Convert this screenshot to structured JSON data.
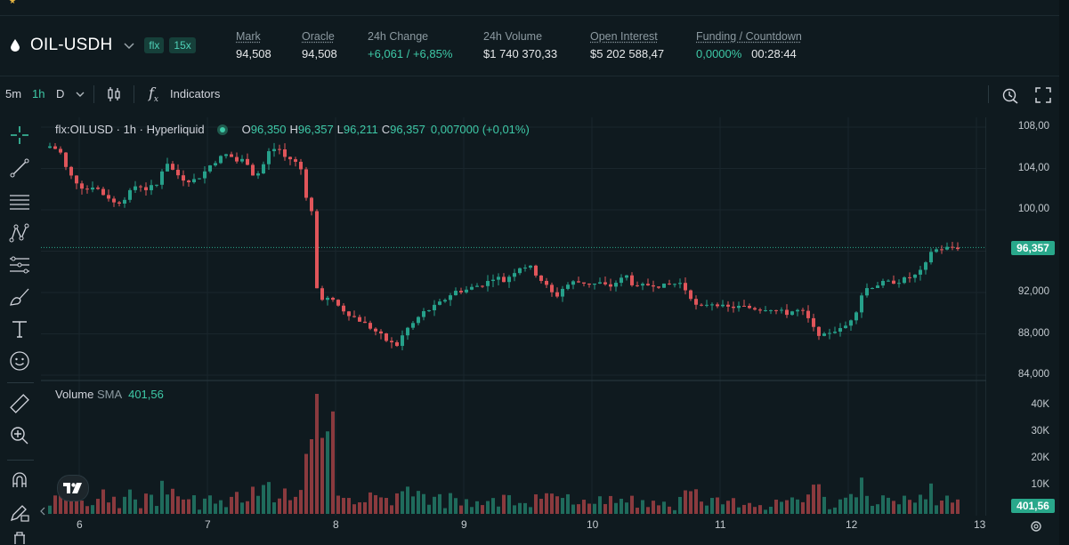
{
  "header": {
    "symbol": "OIL-USDH",
    "badges": [
      "flx",
      "15x"
    ],
    "stats": [
      {
        "label": "Mark",
        "value": "94,508",
        "underline": true
      },
      {
        "label": "Oracle",
        "value": "94,508",
        "underline": true
      },
      {
        "label": "24h Change",
        "value": "+6,061 / +6,85%",
        "underline": false,
        "positive": true
      },
      {
        "label": "24h Volume",
        "value": "$1 740 370,33",
        "underline": false
      },
      {
        "label": "Open Interest",
        "value": "$5 202 588,47",
        "underline": true
      },
      {
        "label": "Funding / Countdown",
        "value": "0,0000%",
        "value2": "00:28:44",
        "underline": true
      }
    ]
  },
  "toolbar": {
    "intervals": [
      "5m",
      "1h",
      "D"
    ],
    "active_interval": "1h",
    "indicators_label": "Indicators"
  },
  "left_tools": [
    "crosshair-icon",
    "trend-line-icon",
    "horizontal-lines-icon",
    "pattern-icon",
    "fib-icon",
    "brush-icon",
    "text-icon",
    "emoji-icon",
    "ruler-icon",
    "zoom-in-icon",
    "magnet-icon",
    "lock-draw-icon",
    "trash-icon"
  ],
  "legend": {
    "title": "flx:OILUSD · 1h · Hyperliquid",
    "o_label": "O",
    "o": "96,350",
    "h_label": "H",
    "h": "96,357",
    "l_label": "L",
    "l": "96,211",
    "c_label": "C",
    "c": "96,357",
    "change": "0,007000 (+0,01%)"
  },
  "volume_legend": {
    "label": "Volume",
    "sma_label": "SMA",
    "sma_value": "401,56"
  },
  "colors": {
    "up": "#26a08a",
    "down": "#e0555a",
    "bg": "#0f1a1f",
    "grid": "#1a262c",
    "tag": "#29a88b"
  },
  "chart_data": {
    "type": "candlestick",
    "price_axis": {
      "ticks": [
        "108,00",
        "104,00",
        "100,00",
        "92,000",
        "88,000",
        "84,000"
      ],
      "ylim": [
        84,
        108.3
      ]
    },
    "last_price": "96,357",
    "volume_axis": {
      "ticks": [
        "40K",
        "30K",
        "20K",
        "10K"
      ]
    },
    "volume_sma": "401,56",
    "x_ticks": [
      "6",
      "7",
      "8",
      "9",
      "10",
      "11",
      "12",
      "13"
    ],
    "price_path": [
      [
        0,
        106.0
      ],
      [
        8,
        106.2
      ],
      [
        18,
        105.5
      ],
      [
        26,
        103.6
      ],
      [
        36,
        102.7
      ],
      [
        46,
        101.9
      ],
      [
        56,
        102.4
      ],
      [
        64,
        101.6
      ],
      [
        72,
        101.2
      ],
      [
        80,
        100.5
      ],
      [
        92,
        101.3
      ],
      [
        104,
        102.5
      ],
      [
        114,
        102.0
      ],
      [
        126,
        102.4
      ],
      [
        136,
        104.8
      ],
      [
        146,
        103.6
      ],
      [
        156,
        103.0
      ],
      [
        166,
        102.8
      ],
      [
        176,
        103.3
      ],
      [
        186,
        104.3
      ],
      [
        196,
        105.0
      ],
      [
        206,
        105.4
      ],
      [
        216,
        104.7
      ],
      [
        226,
        104.9
      ],
      [
        236,
        103.1
      ],
      [
        244,
        104.0
      ],
      [
        252,
        105.6
      ],
      [
        262,
        106.1
      ],
      [
        270,
        105.1
      ],
      [
        280,
        104.8
      ],
      [
        290,
        103.7
      ],
      [
        296,
        100.2
      ],
      [
        302,
        99.6
      ],
      [
        306,
        92.4
      ],
      [
        312,
        91.5
      ],
      [
        322,
        91.3
      ],
      [
        334,
        90.4
      ],
      [
        346,
        89.7
      ],
      [
        356,
        89.2
      ],
      [
        366,
        88.6
      ],
      [
        376,
        88.0
      ],
      [
        386,
        87.2
      ],
      [
        396,
        86.9
      ],
      [
        406,
        88.4
      ],
      [
        414,
        89.0
      ],
      [
        424,
        90.0
      ],
      [
        436,
        90.5
      ],
      [
        448,
        91.2
      ],
      [
        460,
        92.1
      ],
      [
        472,
        92.2
      ],
      [
        484,
        92.6
      ],
      [
        496,
        92.9
      ],
      [
        506,
        93.6
      ],
      [
        516,
        93.1
      ],
      [
        526,
        93.9
      ],
      [
        536,
        94.6
      ],
      [
        546,
        94.4
      ],
      [
        556,
        93.4
      ],
      [
        566,
        92.4
      ],
      [
        574,
        91.5
      ],
      [
        584,
        92.6
      ],
      [
        594,
        93.0
      ],
      [
        604,
        93.0
      ],
      [
        614,
        92.8
      ],
      [
        624,
        92.9
      ],
      [
        634,
        92.5
      ],
      [
        644,
        93.1
      ],
      [
        654,
        93.6
      ],
      [
        664,
        92.4
      ],
      [
        674,
        92.7
      ],
      [
        684,
        92.8
      ],
      [
        694,
        92.6
      ],
      [
        704,
        92.8
      ],
      [
        714,
        92.9
      ],
      [
        724,
        91.9
      ],
      [
        734,
        90.4
      ],
      [
        744,
        90.9
      ],
      [
        754,
        91.0
      ],
      [
        764,
        90.5
      ],
      [
        774,
        90.6
      ],
      [
        784,
        90.6
      ],
      [
        794,
        90.5
      ],
      [
        804,
        90.4
      ],
      [
        814,
        90.5
      ],
      [
        824,
        90.2
      ],
      [
        834,
        90.0
      ],
      [
        844,
        90.3
      ],
      [
        854,
        90.0
      ],
      [
        864,
        88.5
      ],
      [
        874,
        87.7
      ],
      [
        884,
        88.3
      ],
      [
        894,
        88.4
      ],
      [
        902,
        88.9
      ],
      [
        912,
        90.3
      ],
      [
        920,
        92.3
      ],
      [
        930,
        92.6
      ],
      [
        940,
        92.9
      ],
      [
        950,
        93.0
      ],
      [
        960,
        93.1
      ],
      [
        970,
        93.4
      ],
      [
        980,
        93.7
      ],
      [
        988,
        94.3
      ],
      [
        996,
        96.0
      ],
      [
        1004,
        96.2
      ],
      [
        1012,
        96.3
      ],
      [
        1020,
        96.35
      ]
    ]
  }
}
